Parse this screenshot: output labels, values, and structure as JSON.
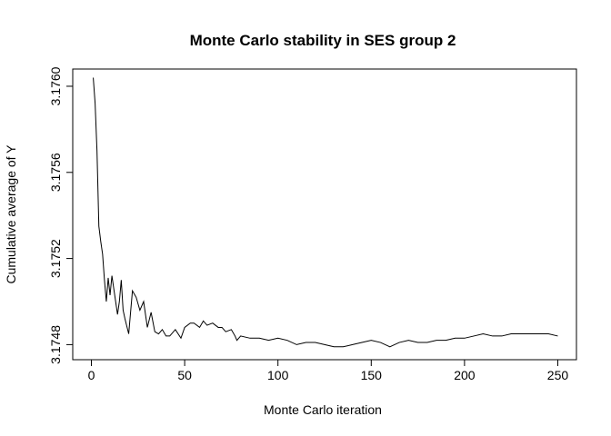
{
  "chart_data": {
    "type": "line",
    "title": "Monte Carlo stability in SES group 2",
    "xlabel": "Monte Carlo iteration",
    "ylabel": "Cumulative average of Y",
    "xlim": [
      -10,
      260
    ],
    "ylim": [
      3.17473,
      3.17608
    ],
    "x_ticks": [
      0,
      50,
      100,
      150,
      200,
      250
    ],
    "x_tick_labels": [
      "0",
      "50",
      "100",
      "150",
      "200",
      "250"
    ],
    "y_ticks": [
      3.1748,
      3.1752,
      3.1756,
      3.176
    ],
    "y_tick_labels": [
      "3.1748",
      "3.1752",
      "3.1756",
      "3.1760"
    ],
    "grid": false,
    "series": [
      {
        "x": [
          1,
          2,
          3,
          4,
          5,
          6,
          7,
          8,
          9,
          10,
          11,
          12,
          13,
          14,
          15,
          16,
          17,
          18,
          20,
          22,
          24,
          26,
          28,
          30,
          32,
          34,
          36,
          38,
          40,
          42,
          45,
          48,
          50,
          53,
          55,
          58,
          60,
          62,
          65,
          68,
          70,
          72,
          75,
          77,
          78,
          80,
          85,
          90,
          95,
          100,
          105,
          110,
          115,
          120,
          125,
          130,
          135,
          140,
          145,
          150,
          155,
          160,
          165,
          170,
          175,
          180,
          185,
          190,
          195,
          200,
          205,
          210,
          215,
          220,
          225,
          230,
          235,
          240,
          245,
          250
        ],
        "y": [
          3.17604,
          3.17592,
          3.1757,
          3.17535,
          3.17528,
          3.17522,
          3.1751,
          3.175,
          3.17511,
          3.17503,
          3.17512,
          3.17506,
          3.175,
          3.17494,
          3.175,
          3.1751,
          3.17496,
          3.17492,
          3.17485,
          3.17505,
          3.17502,
          3.17496,
          3.175,
          3.17488,
          3.17495,
          3.17486,
          3.17485,
          3.17487,
          3.17484,
          3.17484,
          3.17487,
          3.17483,
          3.17488,
          3.1749,
          3.1749,
          3.17488,
          3.17491,
          3.17489,
          3.1749,
          3.17488,
          3.17488,
          3.17486,
          3.17487,
          3.17484,
          3.17482,
          3.17484,
          3.17483,
          3.17483,
          3.17482,
          3.17483,
          3.17482,
          3.1748,
          3.17481,
          3.17481,
          3.1748,
          3.17479,
          3.17479,
          3.1748,
          3.17481,
          3.17482,
          3.17481,
          3.17479,
          3.17481,
          3.17482,
          3.17481,
          3.17481,
          3.17482,
          3.17482,
          3.17483,
          3.17483,
          3.17484,
          3.17485,
          3.17484,
          3.17484,
          3.17485,
          3.17485,
          3.17485,
          3.17485,
          3.17485,
          3.17484
        ]
      }
    ]
  }
}
